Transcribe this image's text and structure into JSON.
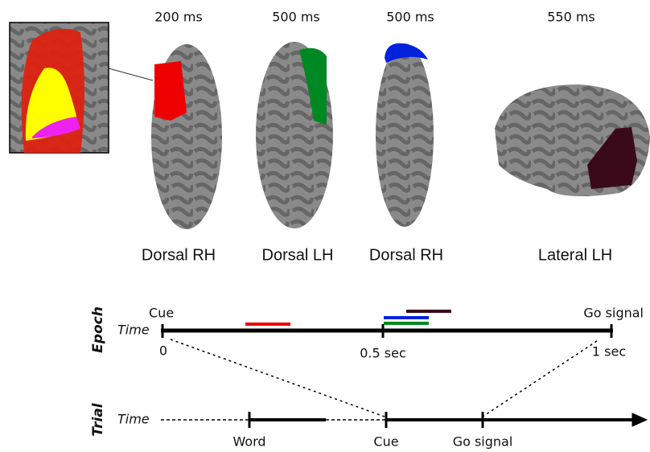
{
  "brain_panels": [
    {
      "time": "200 ms",
      "view": "Dorsal RH"
    },
    {
      "time": "500 ms",
      "view": "Dorsal LH"
    },
    {
      "time": "500 ms",
      "view": "Dorsal RH"
    },
    {
      "time": "550 ms",
      "view": "Lateral LH"
    }
  ],
  "epoch": {
    "row_label": "Epoch",
    "axis_label": "Time",
    "start_event": "Cue",
    "end_event": "Go signal",
    "ticks": [
      "0",
      "0.5 sec",
      "1 sec"
    ]
  },
  "trial": {
    "row_label": "Trial",
    "axis_label": "Time",
    "events": [
      "Word",
      "Cue",
      "Go signal"
    ]
  }
}
